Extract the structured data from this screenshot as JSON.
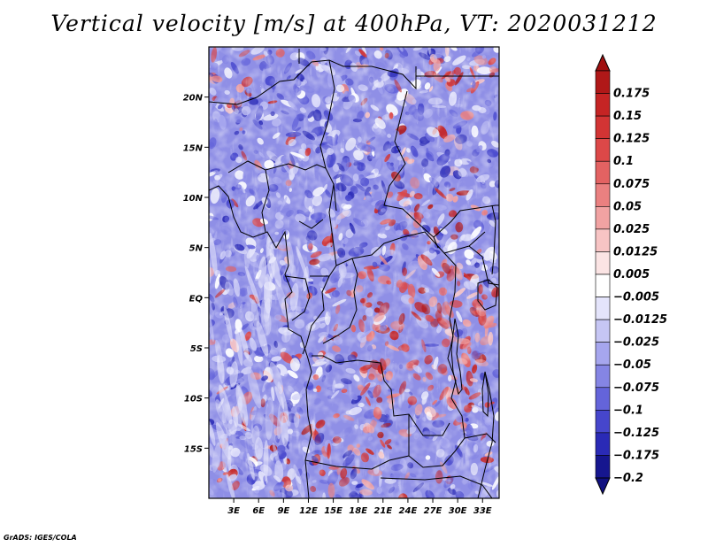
{
  "title": "Vertical velocity [m/s] at 400hPa, VT: 2020031212",
  "footer": "GrADS: IGES/COLA",
  "map": {
    "lon_range": [
      0,
      35
    ],
    "lat_range": [
      -20,
      25
    ],
    "lat_ticks": [
      {
        "lat": 20,
        "label": "20N"
      },
      {
        "lat": 15,
        "label": "15N"
      },
      {
        "lat": 10,
        "label": "10N"
      },
      {
        "lat": 5,
        "label": "5N"
      },
      {
        "lat": 0,
        "label": "EQ"
      },
      {
        "lat": -5,
        "label": "5S"
      },
      {
        "lat": -10,
        "label": "10S"
      },
      {
        "lat": -15,
        "label": "15S"
      }
    ],
    "lon_ticks": [
      {
        "lon": 3,
        "label": "3E"
      },
      {
        "lon": 6,
        "label": "6E"
      },
      {
        "lon": 9,
        "label": "9E"
      },
      {
        "lon": 12,
        "label": "12E"
      },
      {
        "lon": 15,
        "label": "15E"
      },
      {
        "lon": 18,
        "label": "18E"
      },
      {
        "lon": 21,
        "label": "21E"
      },
      {
        "lon": 24,
        "label": "24E"
      },
      {
        "lon": 27,
        "label": "27E"
      },
      {
        "lon": 30,
        "label": "30E"
      },
      {
        "lon": 33,
        "label": "33E"
      }
    ]
  },
  "colorbar": {
    "levels": [
      {
        "label": "0.175",
        "color": "#b01818"
      },
      {
        "label": "0.15",
        "color": "#c52424"
      },
      {
        "label": "0.125",
        "color": "#d23434"
      },
      {
        "label": "0.1",
        "color": "#dc4848"
      },
      {
        "label": "0.075",
        "color": "#e36262"
      },
      {
        "label": "0.05",
        "color": "#ea8080"
      },
      {
        "label": "0.025",
        "color": "#f1a2a2"
      },
      {
        "label": "0.0125",
        "color": "#f7c4c4"
      },
      {
        "label": "0.005",
        "color": "#fbe4e4"
      },
      {
        "label": "−0.005",
        "color": "#ffffff"
      },
      {
        "label": "−0.0125",
        "color": "#e4e4fb"
      },
      {
        "label": "−0.025",
        "color": "#c6c6f4"
      },
      {
        "label": "−0.05",
        "color": "#a6a6ee"
      },
      {
        "label": "−0.075",
        "color": "#8585e4"
      },
      {
        "label": "−0.1",
        "color": "#6464da"
      },
      {
        "label": "−0.125",
        "color": "#4646cc"
      },
      {
        "label": "−0.175",
        "color": "#2a2ab6"
      },
      {
        "label": "−0.2",
        "color": "#16168f"
      }
    ],
    "top_tip_color": "#a01010",
    "bottom_tip_color": "#101080"
  }
}
